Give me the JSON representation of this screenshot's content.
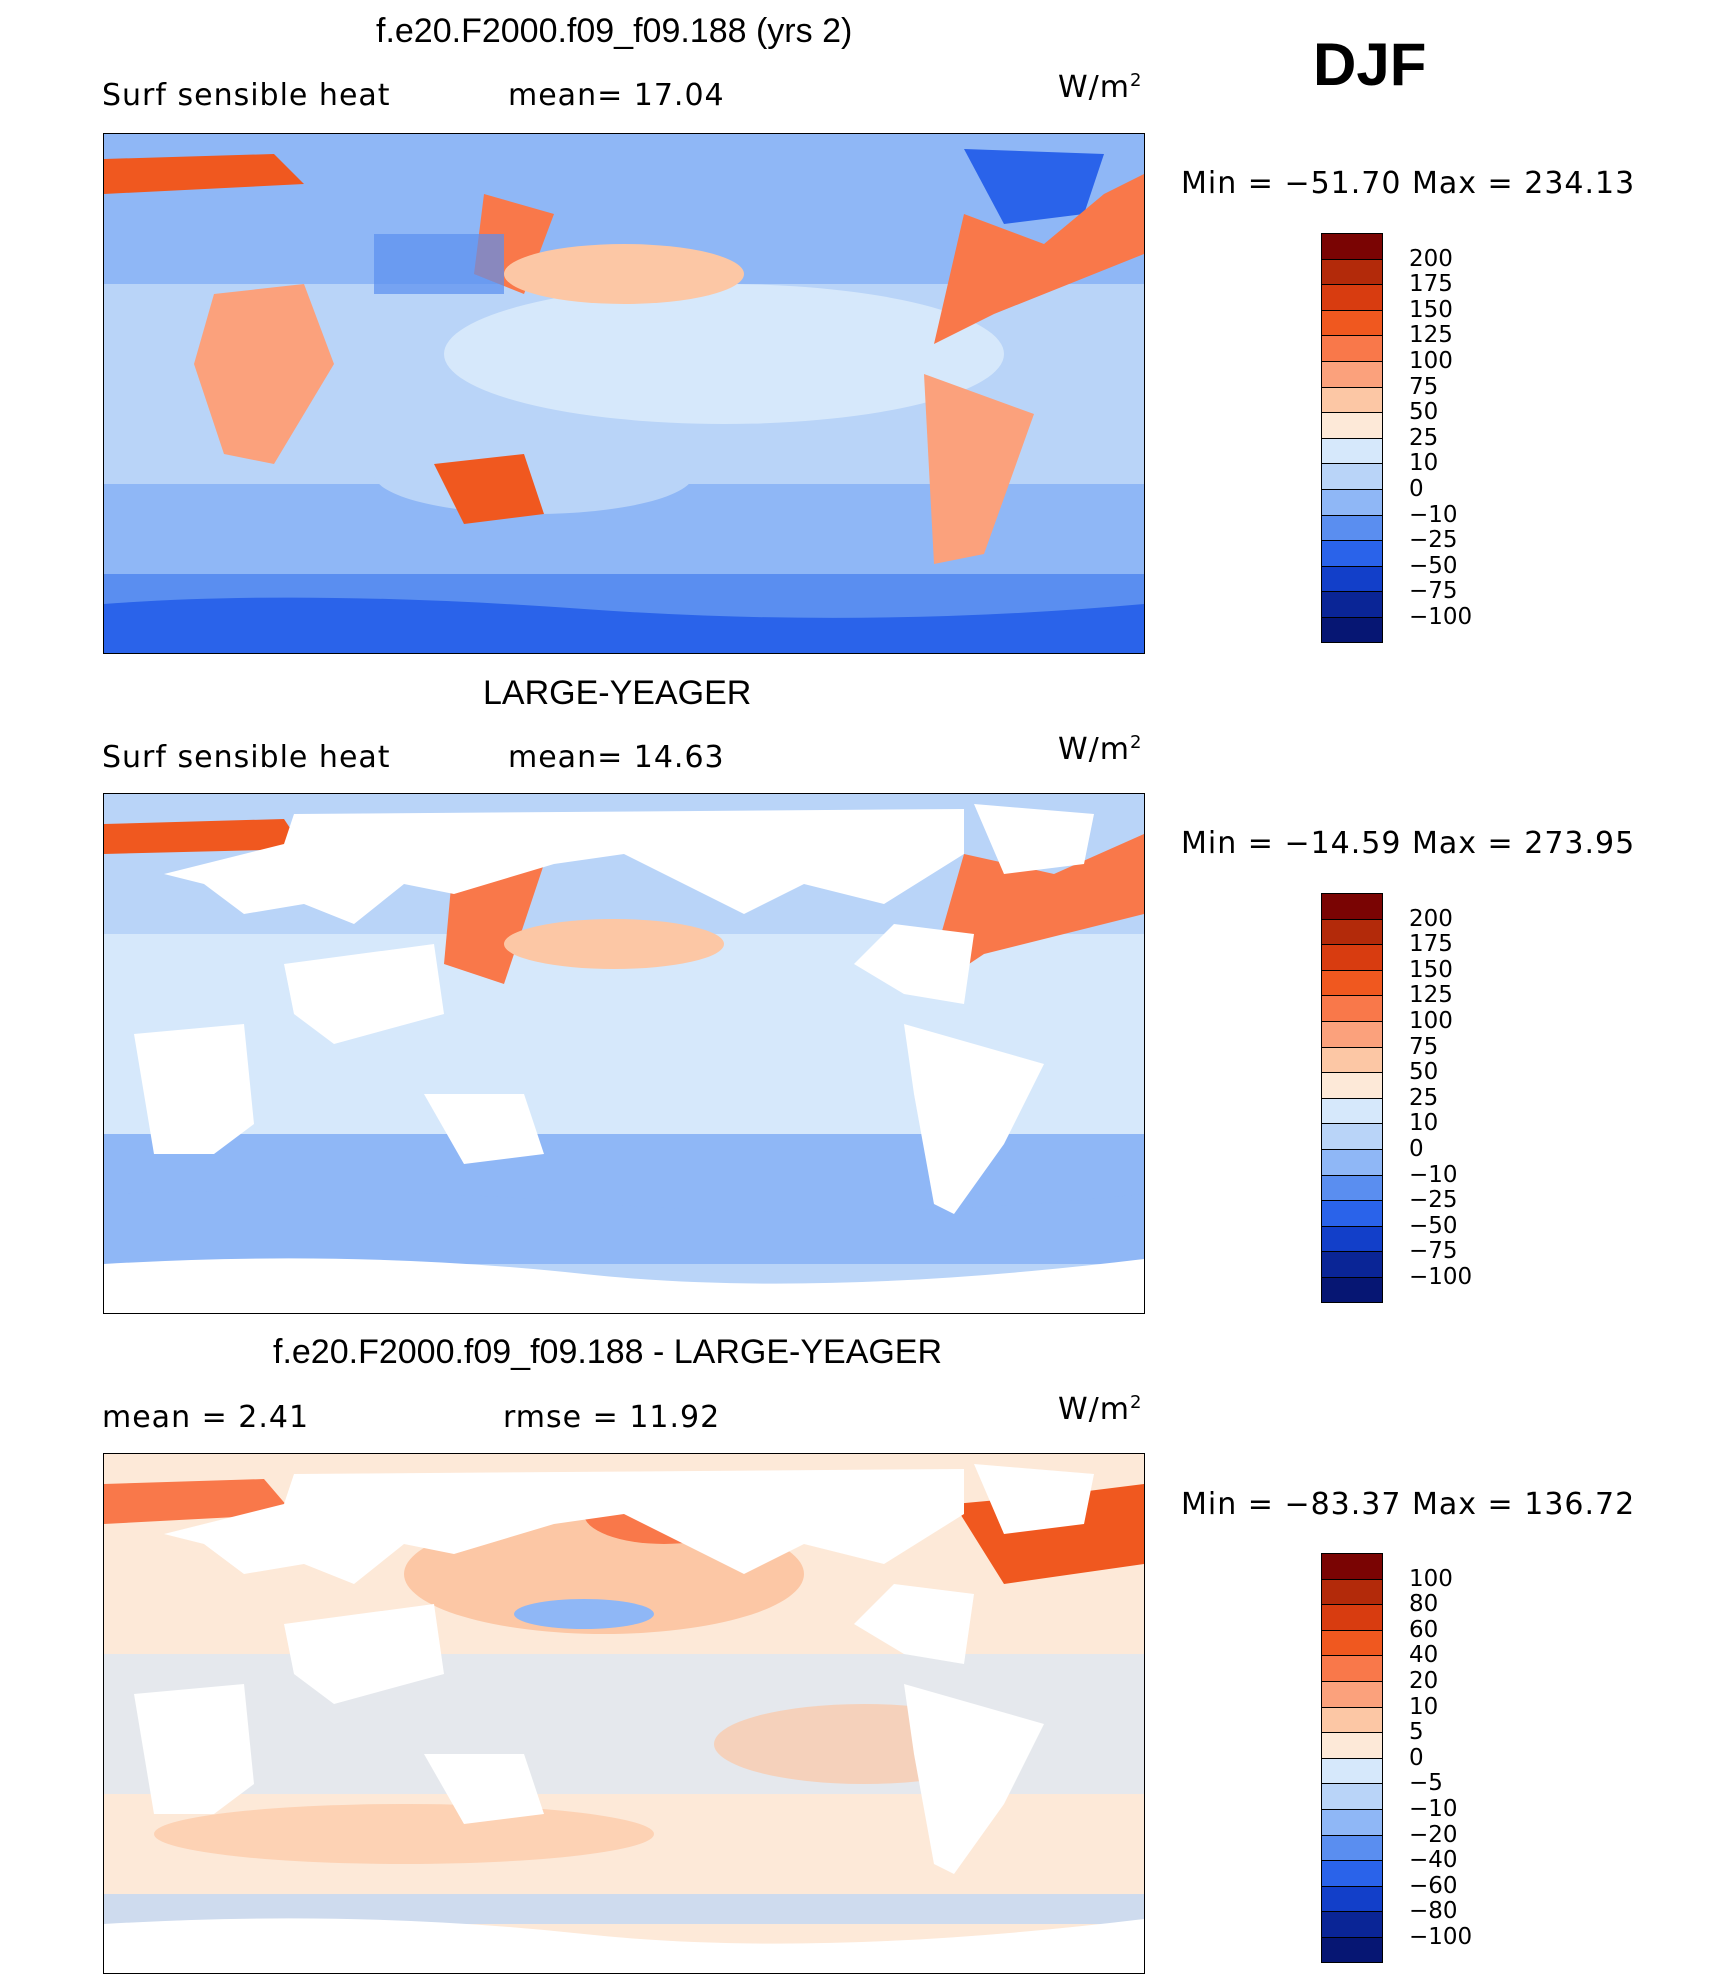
{
  "season": "DJF",
  "panels": [
    {
      "title": "f.e20.F2000.f09_f09.188 (yrs 2)",
      "left_label": "Surf  sensible  heat",
      "mid_label": "mean=   17.04",
      "units_base": "W/m",
      "units_exp": "2",
      "minmax": "Min  =  −51.70  Max  =  234.13",
      "levels": [
        "200",
        "175",
        "150",
        "125",
        "100",
        "75",
        "50",
        "25",
        "10",
        "0",
        "−10",
        "−25",
        "−50",
        "−75",
        "−100"
      ],
      "colors": [
        "#7a0403",
        "#b32a0a",
        "#d83c10",
        "#f0581f",
        "#f9784a",
        "#fba17c",
        "#fcc7a5",
        "#fde9d8",
        "#d6e8fb",
        "#b9d4f8",
        "#8fb7f6",
        "#5a8ef0",
        "#2a63ea",
        "#123fc9",
        "#0a2596",
        "#061673"
      ]
    },
    {
      "title": "LARGE-YEAGER",
      "left_label": "Surf  sensible  heat",
      "mid_label": "mean=   14.63",
      "units_base": "W/m",
      "units_exp": "2",
      "minmax": "Min  =  −14.59  Max  =  273.95",
      "levels": [
        "200",
        "175",
        "150",
        "125",
        "100",
        "75",
        "50",
        "25",
        "10",
        "0",
        "−10",
        "−25",
        "−50",
        "−75",
        "−100"
      ],
      "colors": [
        "#7a0403",
        "#b32a0a",
        "#d83c10",
        "#f0581f",
        "#f9784a",
        "#fba17c",
        "#fcc7a5",
        "#fde9d8",
        "#d6e8fb",
        "#b9d4f8",
        "#8fb7f6",
        "#5a8ef0",
        "#2a63ea",
        "#123fc9",
        "#0a2596",
        "#061673"
      ]
    },
    {
      "title": "f.e20.F2000.f09_f09.188 - LARGE-YEAGER",
      "left_label": "mean  =      2.41",
      "mid_label": "rmse  =     11.92",
      "units_base": "W/m",
      "units_exp": "2",
      "minmax": "Min  =  −83.37  Max  =  136.72",
      "levels": [
        "100",
        "80",
        "60",
        "40",
        "20",
        "10",
        "5",
        "0",
        "−5",
        "−10",
        "−20",
        "−40",
        "−60",
        "−80",
        "−100"
      ],
      "colors": [
        "#7a0403",
        "#b32a0a",
        "#d83c10",
        "#f0581f",
        "#f9784a",
        "#fba17c",
        "#fcc7a5",
        "#fde9d8",
        "#d6e8fb",
        "#b9d4f8",
        "#8fb7f6",
        "#5a8ef0",
        "#2a63ea",
        "#123fc9",
        "#0a2596",
        "#061673"
      ]
    }
  ]
}
